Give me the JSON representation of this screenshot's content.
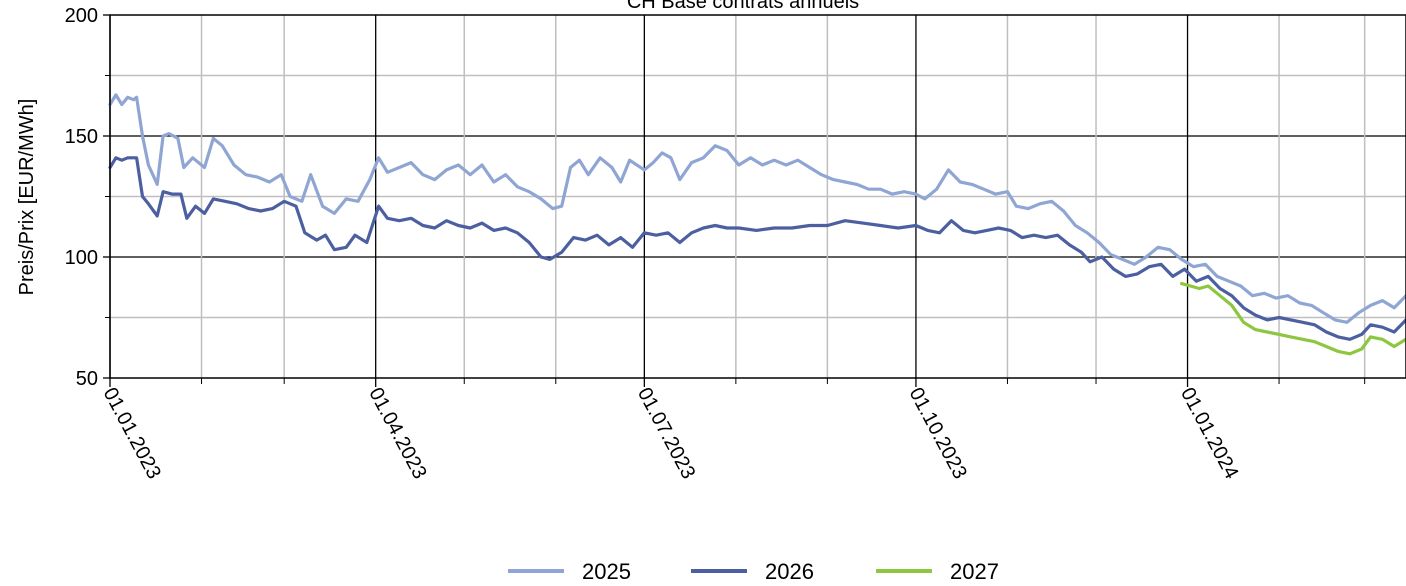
{
  "chart_data": {
    "type": "line",
    "title": "CH Base contrats annuels",
    "ylabel": "Preis/Prix [EUR/MWh]",
    "xlabel": "",
    "ylim": [
      50,
      200
    ],
    "xlim": [
      "2023-01-01",
      "2024-03-15"
    ],
    "y_ticks": [
      "50",
      "100",
      "150",
      "200"
    ],
    "x_major_ticks": [
      "01.01.2023",
      "01.04.2023",
      "01.07.2023",
      "01.10.2023",
      "01.01.2024"
    ],
    "x_major_dates": [
      "2023-01-01",
      "2023-04-01",
      "2023-07-01",
      "2023-10-01",
      "2024-01-01"
    ],
    "x_minor_dates": [
      "2023-02-01",
      "2023-03-01",
      "2023-05-01",
      "2023-06-01",
      "2023-08-01",
      "2023-09-01",
      "2023-11-01",
      "2023-12-01",
      "2024-02-01",
      "2024-03-01"
    ],
    "grid": true,
    "legend_position": "bottom",
    "series": [
      {
        "name": "2025",
        "color": "#8fa5d3",
        "points": [
          [
            "2023-01-01",
            163
          ],
          [
            "2023-01-03",
            167
          ],
          [
            "2023-01-05",
            163
          ],
          [
            "2023-01-07",
            166
          ],
          [
            "2023-01-09",
            165
          ],
          [
            "2023-01-10",
            166
          ],
          [
            "2023-01-12",
            150
          ],
          [
            "2023-01-14",
            138
          ],
          [
            "2023-01-17",
            130
          ],
          [
            "2023-01-19",
            150
          ],
          [
            "2023-01-21",
            151
          ],
          [
            "2023-01-24",
            149
          ],
          [
            "2023-01-26",
            137
          ],
          [
            "2023-01-29",
            141
          ],
          [
            "2023-02-02",
            137
          ],
          [
            "2023-02-05",
            149
          ],
          [
            "2023-02-08",
            146
          ],
          [
            "2023-02-12",
            138
          ],
          [
            "2023-02-16",
            134
          ],
          [
            "2023-02-20",
            133
          ],
          [
            "2023-02-24",
            131
          ],
          [
            "2023-02-28",
            134
          ],
          [
            "2023-03-03",
            125
          ],
          [
            "2023-03-07",
            123
          ],
          [
            "2023-03-10",
            134
          ],
          [
            "2023-03-14",
            121
          ],
          [
            "2023-03-18",
            118
          ],
          [
            "2023-03-22",
            124
          ],
          [
            "2023-03-26",
            123
          ],
          [
            "2023-03-30",
            132
          ],
          [
            "2023-04-02",
            141
          ],
          [
            "2023-04-05",
            135
          ],
          [
            "2023-04-09",
            137
          ],
          [
            "2023-04-13",
            139
          ],
          [
            "2023-04-17",
            134
          ],
          [
            "2023-04-21",
            132
          ],
          [
            "2023-04-25",
            136
          ],
          [
            "2023-04-29",
            138
          ],
          [
            "2023-05-03",
            134
          ],
          [
            "2023-05-07",
            138
          ],
          [
            "2023-05-11",
            131
          ],
          [
            "2023-05-15",
            134
          ],
          [
            "2023-05-19",
            129
          ],
          [
            "2023-05-23",
            127
          ],
          [
            "2023-05-27",
            124
          ],
          [
            "2023-05-31",
            120
          ],
          [
            "2023-06-03",
            121
          ],
          [
            "2023-06-06",
            137
          ],
          [
            "2023-06-09",
            140
          ],
          [
            "2023-06-12",
            134
          ],
          [
            "2023-06-16",
            141
          ],
          [
            "2023-06-20",
            137
          ],
          [
            "2023-06-23",
            131
          ],
          [
            "2023-06-26",
            140
          ],
          [
            "2023-07-01",
            136
          ],
          [
            "2023-07-04",
            139
          ],
          [
            "2023-07-07",
            143
          ],
          [
            "2023-07-10",
            141
          ],
          [
            "2023-07-13",
            132
          ],
          [
            "2023-07-17",
            139
          ],
          [
            "2023-07-21",
            141
          ],
          [
            "2023-07-25",
            146
          ],
          [
            "2023-07-29",
            144
          ],
          [
            "2023-08-02",
            138
          ],
          [
            "2023-08-06",
            141
          ],
          [
            "2023-08-10",
            138
          ],
          [
            "2023-08-14",
            140
          ],
          [
            "2023-08-18",
            138
          ],
          [
            "2023-08-22",
            140
          ],
          [
            "2023-08-26",
            137
          ],
          [
            "2023-08-30",
            134
          ],
          [
            "2023-09-03",
            132
          ],
          [
            "2023-09-07",
            131
          ],
          [
            "2023-09-11",
            130
          ],
          [
            "2023-09-15",
            128
          ],
          [
            "2023-09-19",
            128
          ],
          [
            "2023-09-23",
            126
          ],
          [
            "2023-09-27",
            127
          ],
          [
            "2023-10-01",
            126
          ],
          [
            "2023-10-04",
            124
          ],
          [
            "2023-10-08",
            128
          ],
          [
            "2023-10-12",
            136
          ],
          [
            "2023-10-16",
            131
          ],
          [
            "2023-10-20",
            130
          ],
          [
            "2023-10-24",
            128
          ],
          [
            "2023-10-28",
            126
          ],
          [
            "2023-11-01",
            127
          ],
          [
            "2023-11-04",
            121
          ],
          [
            "2023-11-08",
            120
          ],
          [
            "2023-11-12",
            122
          ],
          [
            "2023-11-16",
            123
          ],
          [
            "2023-11-20",
            119
          ],
          [
            "2023-11-24",
            113
          ],
          [
            "2023-11-28",
            110
          ],
          [
            "2023-12-02",
            106
          ],
          [
            "2023-12-06",
            101
          ],
          [
            "2023-12-10",
            99
          ],
          [
            "2023-12-14",
            97
          ],
          [
            "2023-12-18",
            100
          ],
          [
            "2023-12-22",
            104
          ],
          [
            "2023-12-26",
            103
          ],
          [
            "2023-12-30",
            99
          ],
          [
            "2024-01-03",
            96
          ],
          [
            "2024-01-07",
            97
          ],
          [
            "2024-01-11",
            92
          ],
          [
            "2024-01-15",
            90
          ],
          [
            "2024-01-19",
            88
          ],
          [
            "2024-01-23",
            84
          ],
          [
            "2024-01-27",
            85
          ],
          [
            "2024-01-31",
            83
          ],
          [
            "2024-02-04",
            84
          ],
          [
            "2024-02-08",
            81
          ],
          [
            "2024-02-12",
            80
          ],
          [
            "2024-02-16",
            77
          ],
          [
            "2024-02-20",
            74
          ],
          [
            "2024-02-24",
            73
          ],
          [
            "2024-02-28",
            77
          ],
          [
            "2024-03-03",
            80
          ],
          [
            "2024-03-07",
            82
          ],
          [
            "2024-03-11",
            79
          ],
          [
            "2024-03-15",
            84
          ]
        ]
      },
      {
        "name": "2026",
        "color": "#4c5fa0",
        "points": [
          [
            "2023-01-01",
            137
          ],
          [
            "2023-01-03",
            141
          ],
          [
            "2023-01-05",
            140
          ],
          [
            "2023-01-07",
            141
          ],
          [
            "2023-01-10",
            141
          ],
          [
            "2023-01-12",
            125
          ],
          [
            "2023-01-14",
            122
          ],
          [
            "2023-01-17",
            117
          ],
          [
            "2023-01-19",
            127
          ],
          [
            "2023-01-22",
            126
          ],
          [
            "2023-01-25",
            126
          ],
          [
            "2023-01-27",
            116
          ],
          [
            "2023-01-30",
            121
          ],
          [
            "2023-02-02",
            118
          ],
          [
            "2023-02-05",
            124
          ],
          [
            "2023-02-09",
            123
          ],
          [
            "2023-02-13",
            122
          ],
          [
            "2023-02-17",
            120
          ],
          [
            "2023-02-21",
            119
          ],
          [
            "2023-02-25",
            120
          ],
          [
            "2023-03-01",
            123
          ],
          [
            "2023-03-05",
            121
          ],
          [
            "2023-03-08",
            110
          ],
          [
            "2023-03-12",
            107
          ],
          [
            "2023-03-15",
            109
          ],
          [
            "2023-03-18",
            103
          ],
          [
            "2023-03-22",
            104
          ],
          [
            "2023-03-25",
            109
          ],
          [
            "2023-03-29",
            106
          ],
          [
            "2023-04-02",
            121
          ],
          [
            "2023-04-05",
            116
          ],
          [
            "2023-04-09",
            115
          ],
          [
            "2023-04-13",
            116
          ],
          [
            "2023-04-17",
            113
          ],
          [
            "2023-04-21",
            112
          ],
          [
            "2023-04-25",
            115
          ],
          [
            "2023-04-29",
            113
          ],
          [
            "2023-05-03",
            112
          ],
          [
            "2023-05-07",
            114
          ],
          [
            "2023-05-11",
            111
          ],
          [
            "2023-05-15",
            112
          ],
          [
            "2023-05-19",
            110
          ],
          [
            "2023-05-23",
            106
          ],
          [
            "2023-05-27",
            100
          ],
          [
            "2023-05-30",
            99
          ],
          [
            "2023-06-03",
            102
          ],
          [
            "2023-06-07",
            108
          ],
          [
            "2023-06-11",
            107
          ],
          [
            "2023-06-15",
            109
          ],
          [
            "2023-06-19",
            105
          ],
          [
            "2023-06-23",
            108
          ],
          [
            "2023-06-27",
            104
          ],
          [
            "2023-07-01",
            110
          ],
          [
            "2023-07-05",
            109
          ],
          [
            "2023-07-09",
            110
          ],
          [
            "2023-07-13",
            106
          ],
          [
            "2023-07-17",
            110
          ],
          [
            "2023-07-21",
            112
          ],
          [
            "2023-07-25",
            113
          ],
          [
            "2023-07-29",
            112
          ],
          [
            "2023-08-02",
            112
          ],
          [
            "2023-08-08",
            111
          ],
          [
            "2023-08-14",
            112
          ],
          [
            "2023-08-20",
            112
          ],
          [
            "2023-08-26",
            113
          ],
          [
            "2023-09-01",
            113
          ],
          [
            "2023-09-07",
            115
          ],
          [
            "2023-09-13",
            114
          ],
          [
            "2023-09-19",
            113
          ],
          [
            "2023-09-25",
            112
          ],
          [
            "2023-10-01",
            113
          ],
          [
            "2023-10-05",
            111
          ],
          [
            "2023-10-09",
            110
          ],
          [
            "2023-10-13",
            115
          ],
          [
            "2023-10-17",
            111
          ],
          [
            "2023-10-21",
            110
          ],
          [
            "2023-10-25",
            111
          ],
          [
            "2023-10-29",
            112
          ],
          [
            "2023-11-02",
            111
          ],
          [
            "2023-11-06",
            108
          ],
          [
            "2023-11-10",
            109
          ],
          [
            "2023-11-14",
            108
          ],
          [
            "2023-11-18",
            109
          ],
          [
            "2023-11-22",
            105
          ],
          [
            "2023-11-26",
            102
          ],
          [
            "2023-11-29",
            98
          ],
          [
            "2023-12-03",
            100
          ],
          [
            "2023-12-07",
            95
          ],
          [
            "2023-12-11",
            92
          ],
          [
            "2023-12-15",
            93
          ],
          [
            "2023-12-19",
            96
          ],
          [
            "2023-12-23",
            97
          ],
          [
            "2023-12-27",
            92
          ],
          [
            "2023-12-31",
            95
          ],
          [
            "2024-01-04",
            90
          ],
          [
            "2024-01-08",
            92
          ],
          [
            "2024-01-12",
            87
          ],
          [
            "2024-01-16",
            84
          ],
          [
            "2024-01-20",
            79
          ],
          [
            "2024-01-24",
            76
          ],
          [
            "2024-01-28",
            74
          ],
          [
            "2024-02-01",
            75
          ],
          [
            "2024-02-05",
            74
          ],
          [
            "2024-02-09",
            73
          ],
          [
            "2024-02-13",
            72
          ],
          [
            "2024-02-17",
            69
          ],
          [
            "2024-02-21",
            67
          ],
          [
            "2024-02-25",
            66
          ],
          [
            "2024-02-29",
            68
          ],
          [
            "2024-03-03",
            72
          ],
          [
            "2024-03-07",
            71
          ],
          [
            "2024-03-11",
            69
          ],
          [
            "2024-03-15",
            74
          ]
        ]
      },
      {
        "name": "2027",
        "color": "#8dc63f",
        "points": [
          [
            "2023-12-30",
            89
          ],
          [
            "2024-01-02",
            88
          ],
          [
            "2024-01-05",
            87
          ],
          [
            "2024-01-08",
            88
          ],
          [
            "2024-01-12",
            84
          ],
          [
            "2024-01-16",
            80
          ],
          [
            "2024-01-20",
            73
          ],
          [
            "2024-01-24",
            70
          ],
          [
            "2024-01-28",
            69
          ],
          [
            "2024-02-01",
            68
          ],
          [
            "2024-02-05",
            67
          ],
          [
            "2024-02-09",
            66
          ],
          [
            "2024-02-13",
            65
          ],
          [
            "2024-02-17",
            63
          ],
          [
            "2024-02-21",
            61
          ],
          [
            "2024-02-25",
            60
          ],
          [
            "2024-02-29",
            62
          ],
          [
            "2024-03-03",
            67
          ],
          [
            "2024-03-07",
            66
          ],
          [
            "2024-03-11",
            63
          ],
          [
            "2024-03-15",
            66
          ]
        ]
      }
    ]
  }
}
